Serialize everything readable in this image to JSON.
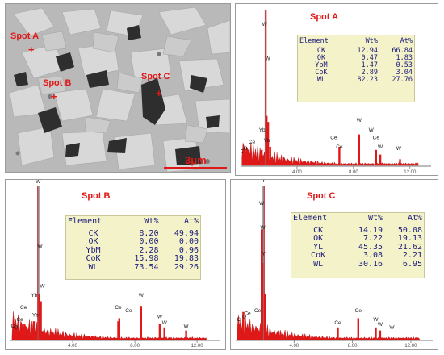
{
  "sem": {
    "scale_label": "3μm",
    "spots": [
      {
        "label": "Spot A"
      },
      {
        "label": "Spot B"
      },
      {
        "label": "Spot C"
      }
    ]
  },
  "chart_data": [
    {
      "type": "bar",
      "title": "Spot A",
      "x_ticks": [
        "4.00",
        "8.00",
        "12.00"
      ],
      "xlim": [
        0,
        13.5
      ],
      "peak_labels": [
        "Yb",
        "Yb",
        "Ce",
        "Ce",
        "O",
        "C",
        "W",
        "W",
        "W",
        "Ce",
        "W",
        "Ce",
        "W",
        "W"
      ],
      "table": {
        "headers": [
          "Element",
          "Wt%",
          "At%"
        ],
        "rows": [
          [
            "CK",
            "12.94",
            "66.84"
          ],
          [
            "OK",
            "0.47",
            "1.83"
          ],
          [
            "YbM",
            "1.47",
            "0.53"
          ],
          [
            "CoK",
            "2.89",
            "3.04"
          ],
          [
            "WL",
            "82.23",
            "27.76"
          ]
        ]
      }
    },
    {
      "type": "bar",
      "title": "Spot B",
      "x_ticks": [
        "4.00",
        "8.00",
        "12.00"
      ],
      "xlim": [
        0,
        13.5
      ],
      "peak_labels": [
        "Yb",
        "Ce",
        "Ce",
        "C",
        "O",
        "Yb",
        "W",
        "W",
        "W",
        "Ce",
        "Ce",
        "W",
        "W",
        "W",
        "W"
      ],
      "table": {
        "headers": [
          "Element",
          "Wt%",
          "At%"
        ],
        "rows": [
          [
            "CK",
            "8.20",
            "49.94"
          ],
          [
            "OK",
            "0.00",
            "0.00"
          ],
          [
            "YbM",
            "2.28",
            "0.96"
          ],
          [
            "CoK",
            "15.98",
            "19.83"
          ],
          [
            "WL",
            "73.54",
            "29.26"
          ]
        ]
      }
    },
    {
      "type": "bar",
      "title": "Spot C",
      "x_ticks": [
        "4.00",
        "8.00",
        "12.00"
      ],
      "xlim": [
        0,
        13.5
      ],
      "peak_labels": [
        "Y",
        "Y",
        "Ce",
        "C",
        "O",
        "Ce",
        "W",
        "W",
        "Ce",
        "Ce",
        "W",
        "W",
        "W"
      ],
      "table": {
        "headers": [
          "Element",
          "Wt%",
          "At%"
        ],
        "rows": [
          [
            "CK",
            "14.19",
            "50.08"
          ],
          [
            "OK",
            "7.22",
            "19.13"
          ],
          [
            "YL",
            "45.35",
            "21.62"
          ],
          [
            "CoK",
            "3.08",
            "2.21"
          ],
          [
            "WL",
            "30.16",
            "6.95"
          ]
        ]
      }
    }
  ]
}
